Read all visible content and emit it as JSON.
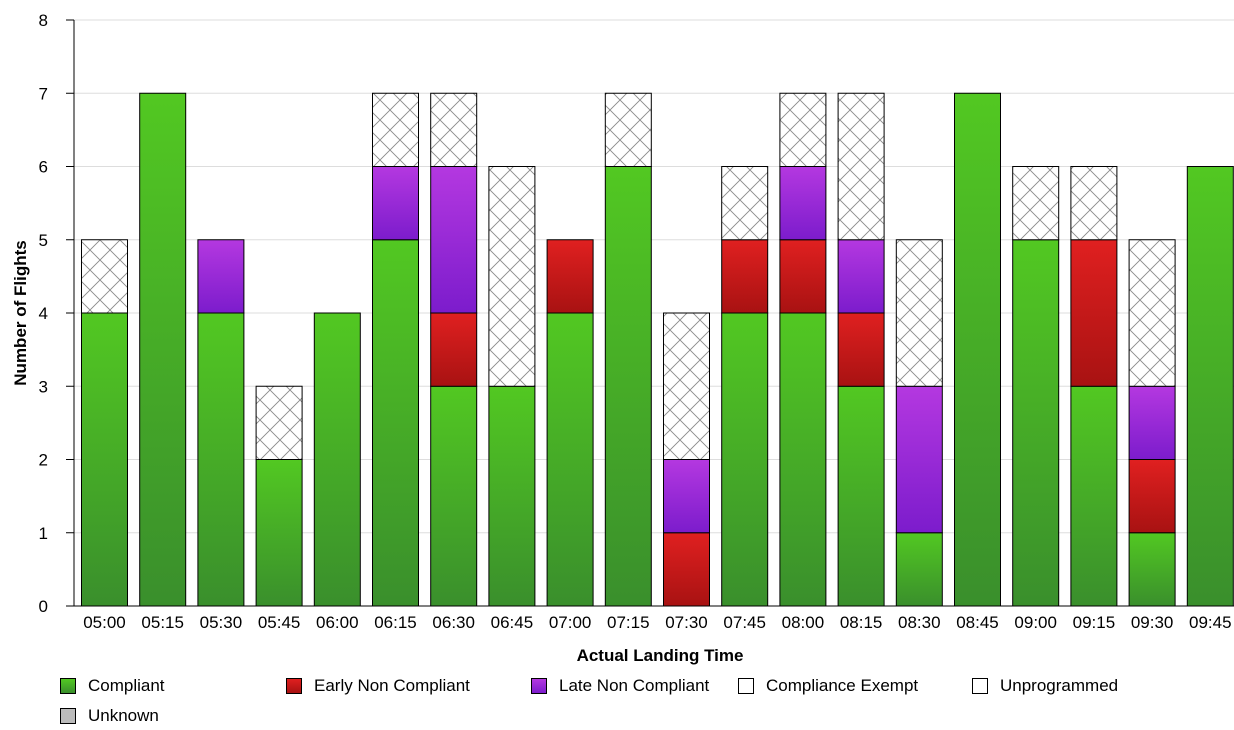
{
  "chart_data": {
    "type": "bar",
    "stacked": true,
    "xlabel": "Actual Landing Time",
    "ylabel": "Number of Flights",
    "ylim": [
      0,
      8
    ],
    "yticks": [
      0,
      1,
      2,
      3,
      4,
      5,
      6,
      7,
      8
    ],
    "grid": true,
    "legend_position": "bottom",
    "categories": [
      "05:00",
      "05:15",
      "05:30",
      "05:45",
      "06:00",
      "06:15",
      "06:30",
      "06:45",
      "07:00",
      "07:15",
      "07:30",
      "07:45",
      "08:00",
      "08:15",
      "08:30",
      "08:45",
      "09:00",
      "09:15",
      "09:30",
      "09:45"
    ],
    "series": [
      {
        "name": "Compliant",
        "color": "#3fae23",
        "pattern": "solid",
        "values": [
          4,
          7,
          4,
          2,
          4,
          5,
          3,
          3,
          4,
          6,
          0,
          4,
          4,
          3,
          1,
          7,
          5,
          3,
          1,
          6
        ]
      },
      {
        "name": "Early Non Compliant",
        "color": "#cc1a1a",
        "pattern": "solid",
        "values": [
          0,
          0,
          0,
          0,
          0,
          0,
          1,
          0,
          1,
          0,
          1,
          1,
          1,
          1,
          0,
          0,
          0,
          2,
          1,
          0
        ]
      },
      {
        "name": "Late Non Compliant",
        "color": "#9b2fd6",
        "pattern": "solid",
        "values": [
          0,
          0,
          1,
          0,
          0,
          1,
          2,
          0,
          0,
          0,
          1,
          0,
          1,
          1,
          2,
          0,
          0,
          0,
          1,
          0
        ]
      },
      {
        "name": "Compliance Exempt",
        "color": "#ffffff",
        "pattern": "crosshatch",
        "values": [
          1,
          0,
          0,
          1,
          0,
          1,
          1,
          3,
          0,
          1,
          2,
          1,
          1,
          2,
          2,
          0,
          1,
          1,
          2,
          0
        ]
      },
      {
        "name": "Unprogrammed",
        "color": "#ffffff",
        "pattern": "solid",
        "values": [
          0,
          0,
          0,
          0,
          0,
          0,
          0,
          0,
          0,
          0,
          0,
          0,
          0,
          0,
          0,
          0,
          0,
          0,
          0,
          0
        ]
      },
      {
        "name": "Unknown",
        "color": "#bbbbbb",
        "pattern": "solid",
        "values": [
          0,
          0,
          0,
          0,
          0,
          0,
          0,
          0,
          0,
          0,
          0,
          0,
          0,
          0,
          0,
          0,
          0,
          0,
          0,
          0
        ]
      }
    ]
  }
}
